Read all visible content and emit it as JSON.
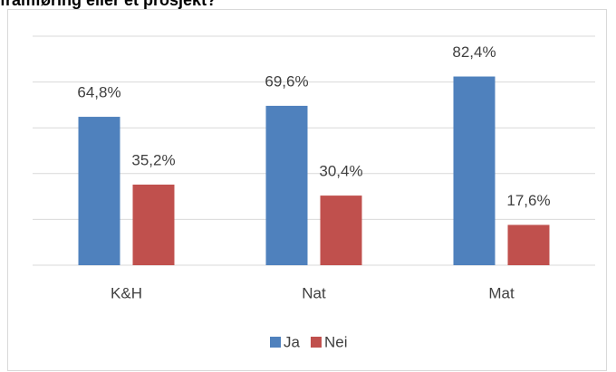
{
  "chart_data": {
    "type": "bar",
    "title": "framføring eller et prosjekt?",
    "categories": [
      "K&H",
      "Nat",
      "Mat"
    ],
    "series": [
      {
        "name": "Ja",
        "color": "#4f81bd",
        "values": [
          64.8,
          69.6,
          82.4
        ],
        "value_labels": [
          "64,8%",
          "69,6%",
          "82,4%"
        ]
      },
      {
        "name": "Nei",
        "color": "#c0504d",
        "values": [
          35.2,
          30.4,
          17.6
        ],
        "value_labels": [
          "35,2%",
          "30,4%",
          "17,6%"
        ]
      }
    ],
    "ylim": [
      0,
      100
    ],
    "yticks": [
      0,
      20,
      40,
      60,
      80,
      100
    ],
    "grid": true,
    "legend": "bottom"
  }
}
